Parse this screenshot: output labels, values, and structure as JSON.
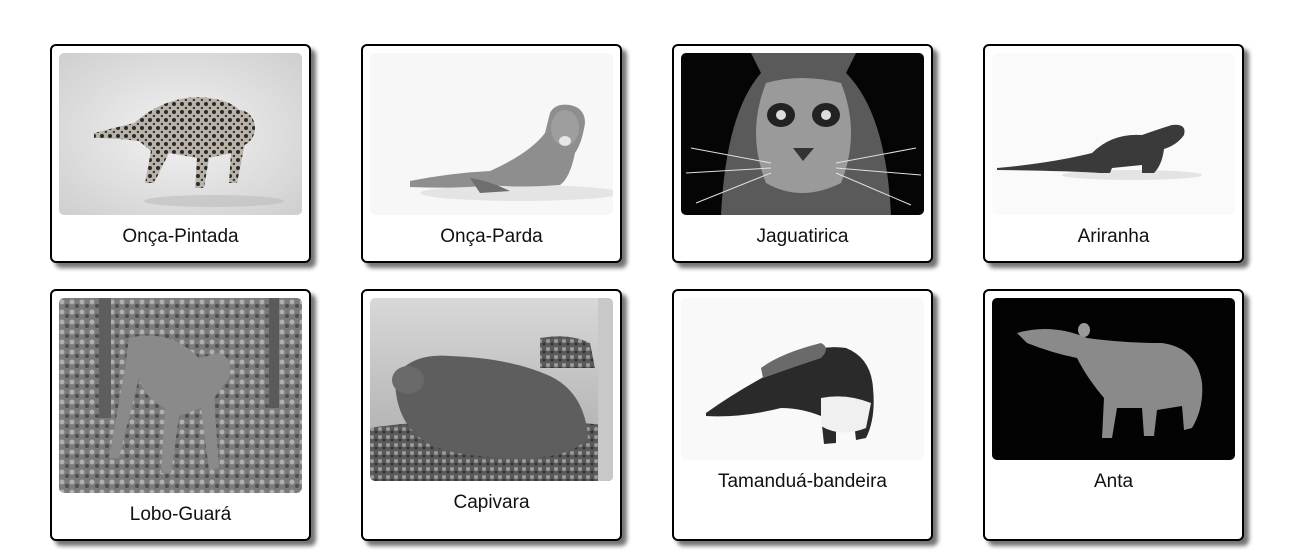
{
  "cards": [
    {
      "name": "Onça-Pintada"
    },
    {
      "name": "Onça-Parda"
    },
    {
      "name": "Jaguatirica"
    },
    {
      "name": "Ariranha"
    },
    {
      "name": "Lobo-Guará"
    },
    {
      "name": "Capivara"
    },
    {
      "name": "Tamanduá-bandeira"
    },
    {
      "name": "Anta"
    }
  ],
  "photo_icons": [
    "jaguar-photo",
    "puma-photo",
    "ocelot-photo",
    "giant-otter-photo",
    "maned-wolf-photo",
    "capybara-photo",
    "giant-anteater-photo",
    "tapir-photo"
  ]
}
